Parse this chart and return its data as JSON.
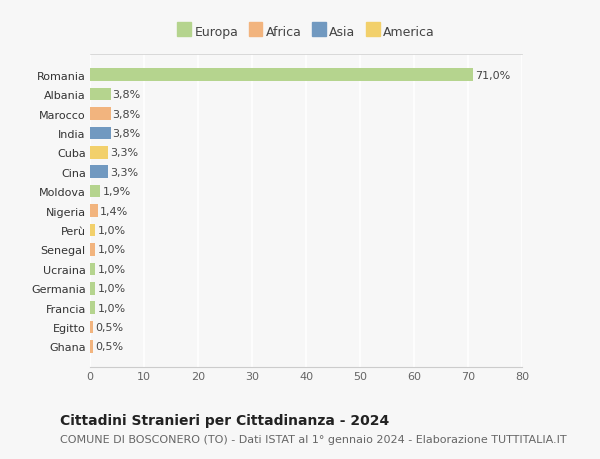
{
  "countries": [
    "Romania",
    "Albania",
    "Marocco",
    "India",
    "Cuba",
    "Cina",
    "Moldova",
    "Nigeria",
    "Perù",
    "Senegal",
    "Ucraina",
    "Germania",
    "Francia",
    "Egitto",
    "Ghana"
  ],
  "values": [
    71.0,
    3.8,
    3.8,
    3.8,
    3.3,
    3.3,
    1.9,
    1.4,
    1.0,
    1.0,
    1.0,
    1.0,
    1.0,
    0.5,
    0.5
  ],
  "labels": [
    "71,0%",
    "3,8%",
    "3,8%",
    "3,8%",
    "3,3%",
    "3,3%",
    "1,9%",
    "1,4%",
    "1,0%",
    "1,0%",
    "1,0%",
    "1,0%",
    "1,0%",
    "0,5%",
    "0,5%"
  ],
  "continents": [
    "Europa",
    "Europa",
    "Africa",
    "Asia",
    "America",
    "Asia",
    "Europa",
    "Africa",
    "America",
    "Africa",
    "Europa",
    "Europa",
    "Europa",
    "Africa",
    "Africa"
  ],
  "continent_colors": {
    "Europa": "#b5d48e",
    "Africa": "#f2b47e",
    "Asia": "#7199c0",
    "America": "#f2d06b"
  },
  "legend_items": [
    "Europa",
    "Africa",
    "Asia",
    "America"
  ],
  "legend_colors": [
    "#b5d48e",
    "#f2b47e",
    "#7199c0",
    "#f2d06b"
  ],
  "title": "Cittadini Stranieri per Cittadinanza - 2024",
  "subtitle": "COMUNE DI BOSCONERO (TO) - Dati ISTAT al 1° gennaio 2024 - Elaborazione TUTTITALIA.IT",
  "xlim": [
    0,
    80
  ],
  "xticks": [
    0,
    10,
    20,
    30,
    40,
    50,
    60,
    70,
    80
  ],
  "bg_color": "#f7f7f7",
  "grid_color": "#ffffff",
  "bar_height": 0.65,
  "title_fontsize": 10,
  "subtitle_fontsize": 8,
  "label_fontsize": 8,
  "tick_fontsize": 8,
  "legend_fontsize": 9
}
